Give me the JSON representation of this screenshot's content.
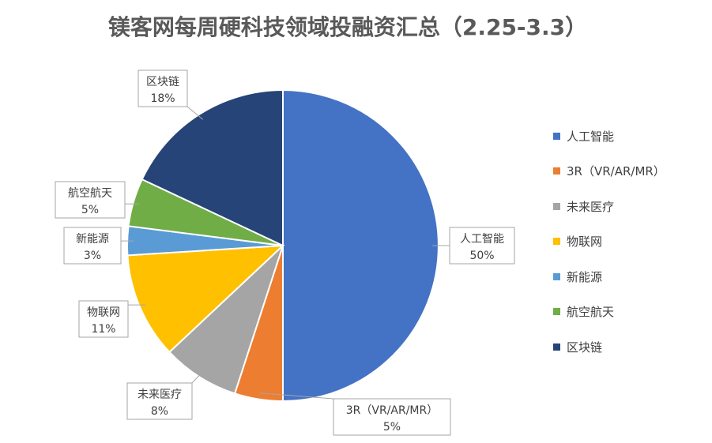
{
  "chart_data": {
    "type": "pie",
    "title": "镁客网每周硬科技领域投融资汇总（2.25-3.3）",
    "slices": [
      {
        "label": "人工智能",
        "value": 50,
        "display": "50%",
        "color": "#4472C4"
      },
      {
        "label": "3R（VR/AR/MR）",
        "value": 5,
        "display": "5%",
        "color": "#ED7D31"
      },
      {
        "label": "未来医疗",
        "value": 8,
        "display": "8%",
        "color": "#A5A5A5"
      },
      {
        "label": "物联网",
        "value": 11,
        "display": "11%",
        "color": "#FFC000"
      },
      {
        "label": "新能源",
        "value": 3,
        "display": "3%",
        "color": "#5B9BD5"
      },
      {
        "label": "航空航天",
        "value": 5,
        "display": "5%",
        "color": "#70AD47"
      },
      {
        "label": "区块链",
        "value": 18,
        "display": "18%",
        "color": "#264478"
      }
    ],
    "legend_position": "right"
  }
}
